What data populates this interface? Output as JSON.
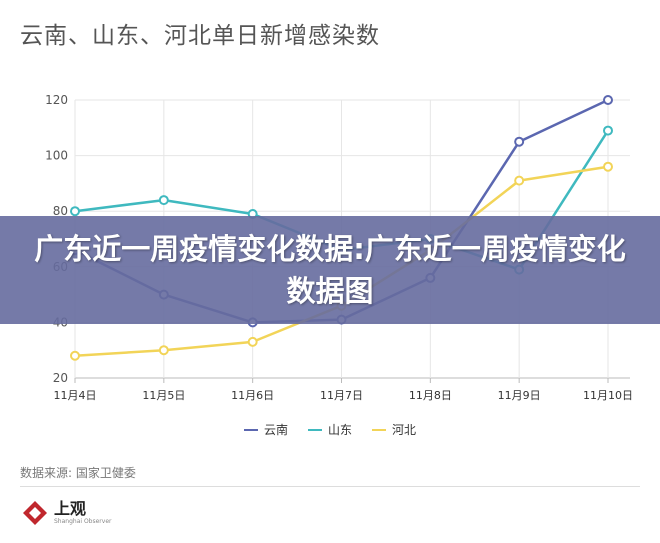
{
  "header": {
    "title": "云南、山东、河北单日新增感染数"
  },
  "overlay": {
    "text": "广东近一周疫情变化数据:广东近一周疫情变化数据图"
  },
  "colors": {
    "yunnan": "#5b67b0",
    "shandong": "#3fb9bf",
    "hebei": "#f2d458",
    "banner": "#666c9e"
  },
  "footer": {
    "source": "数据来源: 国家卫健委",
    "logo_name": "上观",
    "logo_sub": "Shanghai Observer"
  },
  "chart_data": {
    "type": "line",
    "title": "云南、山东、河北单日新增感染数",
    "x": [
      "11月4日",
      "11月5日",
      "11月6日",
      "11月7日",
      "11月8日",
      "11月9日",
      "11月10日"
    ],
    "ylim": [
      20,
      120
    ],
    "yticks": [
      20,
      40,
      60,
      80,
      100,
      120
    ],
    "grid": true,
    "legend_position": "bottom",
    "series": [
      {
        "name": "云南",
        "color": "#5b67b0",
        "values": [
          66,
          50,
          40,
          41,
          56,
          105,
          120
        ]
      },
      {
        "name": "山东",
        "color": "#3fb9bf",
        "values": [
          80,
          84,
          79,
          66,
          70,
          59,
          109
        ]
      },
      {
        "name": "河北",
        "color": "#f2d458",
        "values": [
          28,
          30,
          33,
          46,
          66,
          91,
          96
        ]
      }
    ]
  }
}
